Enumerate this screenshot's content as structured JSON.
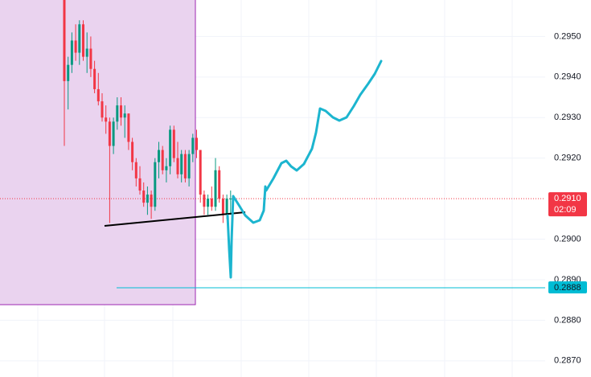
{
  "chart_data": {
    "type": "candlestick",
    "ylim": [
      0.2866,
      0.2959
    ],
    "yticks": [
      {
        "value": 0.295,
        "label": "0.2950"
      },
      {
        "value": 0.294,
        "label": "0.2940"
      },
      {
        "value": 0.293,
        "label": "0.2930"
      },
      {
        "value": 0.292,
        "label": "0.2920"
      },
      {
        "value": 0.29,
        "label": "0.2900"
      },
      {
        "value": 0.289,
        "label": "0.2890"
      },
      {
        "value": 0.288,
        "label": "0.2880"
      },
      {
        "value": 0.287,
        "label": "0.2870"
      }
    ],
    "up_color": "#089981",
    "down_color": "#f23645",
    "grid": true,
    "open": [
      0.2959,
      0.2939,
      0.2943,
      0.2949,
      0.2946,
      0.2953,
      0.2945,
      0.2947,
      0.2942,
      0.2937,
      0.2934,
      0.293,
      0.2929,
      0.2923,
      0.2929,
      0.2933,
      0.293,
      0.2931,
      0.2924,
      0.2919,
      0.2915,
      0.2912,
      0.2909,
      0.2911,
      0.2908,
      0.2919,
      0.2922,
      0.2917,
      0.2918,
      0.2927,
      0.292,
      0.2916,
      0.2921,
      0.2915,
      0.2921,
      0.2925,
      0.2922,
      0.2911,
      0.2908,
      0.291,
      0.2908,
      0.2917,
      0.291,
      0.2906,
      0.291
    ],
    "high": [
      0.296,
      0.2945,
      0.2951,
      0.2953,
      0.2954,
      0.2954,
      0.2951,
      0.295,
      0.2944,
      0.2941,
      0.2936,
      0.2933,
      0.293,
      0.293,
      0.2935,
      0.2935,
      0.2933,
      0.2931,
      0.2925,
      0.292,
      0.2918,
      0.2914,
      0.2913,
      0.2912,
      0.292,
      0.2924,
      0.2923,
      0.292,
      0.2928,
      0.2928,
      0.2924,
      0.2922,
      0.2922,
      0.2922,
      0.2926,
      0.2927,
      0.2922,
      0.2912,
      0.2911,
      0.2913,
      0.292,
      0.2918,
      0.2911,
      0.2911,
      0.2912
    ],
    "low": [
      0.2923,
      0.2932,
      0.2941,
      0.2944,
      0.2943,
      0.2944,
      0.2941,
      0.294,
      0.2936,
      0.2933,
      0.2929,
      0.2926,
      0.2904,
      0.2921,
      0.2927,
      0.2928,
      0.2925,
      0.2922,
      0.2917,
      0.2913,
      0.2911,
      0.2908,
      0.2906,
      0.2905,
      0.2907,
      0.2915,
      0.2916,
      0.2914,
      0.2916,
      0.2919,
      0.2915,
      0.2914,
      0.2914,
      0.2913,
      0.2919,
      0.292,
      0.2909,
      0.2906,
      0.2906,
      0.2907,
      0.2907,
      0.2909,
      0.2904,
      0.2905,
      0.2906
    ],
    "close": [
      0.2939,
      0.2943,
      0.2949,
      0.2946,
      0.2953,
      0.2945,
      0.2947,
      0.2942,
      0.2937,
      0.2934,
      0.293,
      0.2929,
      0.2923,
      0.2929,
      0.2933,
      0.293,
      0.2931,
      0.2924,
      0.2919,
      0.2915,
      0.2912,
      0.2909,
      0.2911,
      0.2908,
      0.2919,
      0.2922,
      0.2917,
      0.2918,
      0.2927,
      0.292,
      0.2916,
      0.2921,
      0.2915,
      0.2921,
      0.2925,
      0.2922,
      0.2911,
      0.2908,
      0.291,
      0.2908,
      0.2917,
      0.291,
      0.2906,
      0.291,
      0.291
    ],
    "price_lines": [
      {
        "value": 0.291,
        "label": "0.2910",
        "countdown": "02:09",
        "color": "#f23645"
      },
      {
        "value": 0.2888,
        "label": "0.2888",
        "color": "#00bcd4"
      }
    ]
  }
}
